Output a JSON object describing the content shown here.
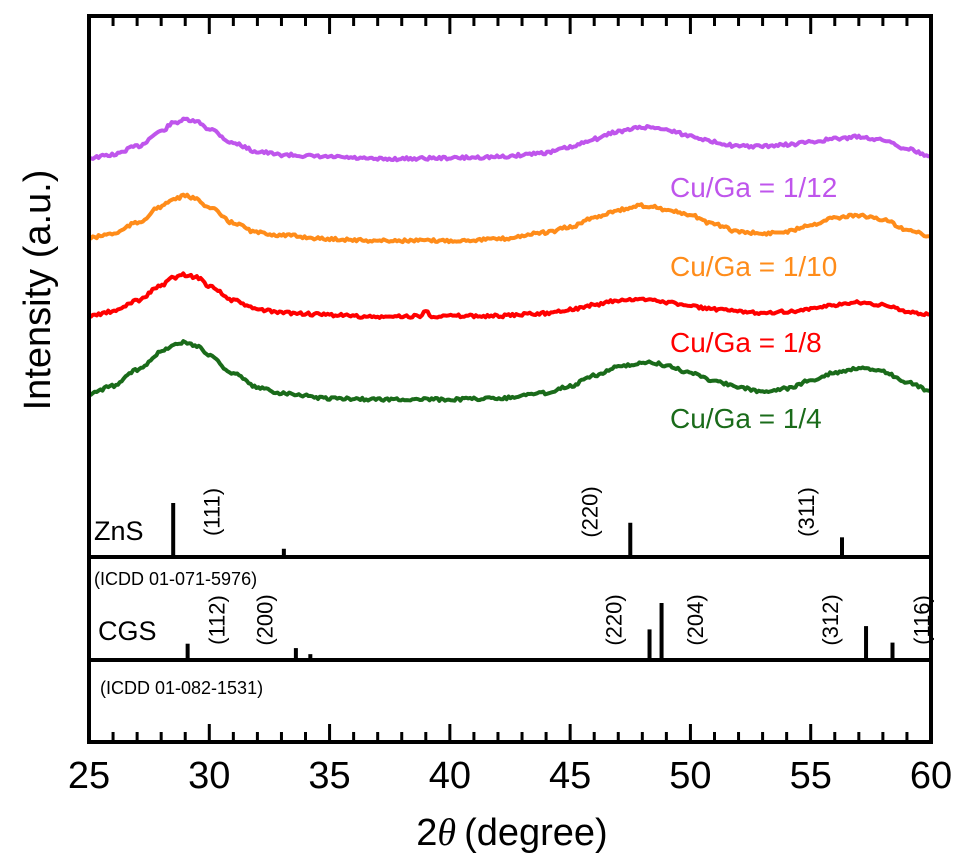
{
  "chart_data": {
    "type": "line",
    "xlabel_prefix": "2",
    "xlabel_symbol": "θ",
    "xlabel_unit": "(degree)",
    "ylabel": "Intensity (a.u.)",
    "xlim": [
      25,
      60
    ],
    "xticks": [
      "25",
      "30",
      "35",
      "40",
      "45",
      "50",
      "55",
      "60"
    ],
    "grid": false,
    "series": [
      {
        "name": "Cu/Ga = 1/12",
        "color": "#bf55ec",
        "baseline": 0.82,
        "points": [
          [
            25,
            0.0
          ],
          [
            26,
            0.06
          ],
          [
            27,
            0.22
          ],
          [
            28,
            0.5
          ],
          [
            28.5,
            0.66
          ],
          [
            29,
            0.72
          ],
          [
            29.5,
            0.68
          ],
          [
            30,
            0.55
          ],
          [
            31,
            0.28
          ],
          [
            32,
            0.12
          ],
          [
            33,
            0.06
          ],
          [
            35,
            0.02
          ],
          [
            37,
            -0.02
          ],
          [
            40,
            0.0
          ],
          [
            42,
            0.02
          ],
          [
            44,
            0.1
          ],
          [
            45,
            0.2
          ],
          [
            46,
            0.36
          ],
          [
            47,
            0.5
          ],
          [
            48,
            0.58
          ],
          [
            48.5,
            0.58
          ],
          [
            49,
            0.53
          ],
          [
            50,
            0.42
          ],
          [
            51,
            0.3
          ],
          [
            52,
            0.22
          ],
          [
            53,
            0.22
          ],
          [
            54,
            0.25
          ],
          [
            55,
            0.3
          ],
          [
            56,
            0.36
          ],
          [
            57,
            0.4
          ],
          [
            58,
            0.34
          ],
          [
            59,
            0.18
          ],
          [
            60,
            0.02
          ]
        ]
      },
      {
        "name": "Cu/Ga = 1/10",
        "color": "#ff8c1a",
        "baseline": 0.9,
        "points": [
          [
            25,
            0.0
          ],
          [
            26,
            0.08
          ],
          [
            27,
            0.28
          ],
          [
            28,
            0.58
          ],
          [
            28.5,
            0.72
          ],
          [
            29,
            0.78
          ],
          [
            29.5,
            0.72
          ],
          [
            30,
            0.56
          ],
          [
            31,
            0.28
          ],
          [
            32,
            0.1
          ],
          [
            33,
            0.05
          ],
          [
            35,
            -0.02
          ],
          [
            37,
            -0.05
          ],
          [
            40,
            -0.05
          ],
          [
            42,
            -0.02
          ],
          [
            44,
            0.1
          ],
          [
            45,
            0.2
          ],
          [
            46,
            0.38
          ],
          [
            47,
            0.52
          ],
          [
            48,
            0.6
          ],
          [
            48.5,
            0.58
          ],
          [
            49,
            0.52
          ],
          [
            50,
            0.42
          ],
          [
            51,
            0.25
          ],
          [
            52,
            0.12
          ],
          [
            53,
            0.08
          ],
          [
            54,
            0.12
          ],
          [
            55,
            0.25
          ],
          [
            56,
            0.38
          ],
          [
            57,
            0.42
          ],
          [
            58,
            0.34
          ],
          [
            59,
            0.16
          ],
          [
            60,
            0.02
          ]
        ]
      },
      {
        "name": "Cu/Ga = 1/8",
        "color": "#ff0000",
        "baseline": 1.0,
        "points": [
          [
            25,
            0.0
          ],
          [
            26,
            0.08
          ],
          [
            27,
            0.28
          ],
          [
            28,
            0.55
          ],
          [
            28.5,
            0.7
          ],
          [
            29,
            0.75
          ],
          [
            29.5,
            0.7
          ],
          [
            30,
            0.55
          ],
          [
            31,
            0.28
          ],
          [
            32,
            0.12
          ],
          [
            33,
            0.06
          ],
          [
            35,
            0.02
          ],
          [
            37,
            -0.02
          ],
          [
            38.8,
            0.0
          ],
          [
            39,
            0.1
          ],
          [
            39.2,
            0.0
          ],
          [
            40,
            0.0
          ],
          [
            42,
            0.0
          ],
          [
            44,
            0.05
          ],
          [
            45,
            0.12
          ],
          [
            46,
            0.2
          ],
          [
            47,
            0.28
          ],
          [
            48,
            0.3
          ],
          [
            48.5,
            0.3
          ],
          [
            49,
            0.25
          ],
          [
            50,
            0.18
          ],
          [
            51,
            0.12
          ],
          [
            52,
            0.08
          ],
          [
            53,
            0.06
          ],
          [
            54,
            0.08
          ],
          [
            55,
            0.12
          ],
          [
            56,
            0.2
          ],
          [
            57,
            0.25
          ],
          [
            58,
            0.2
          ],
          [
            59,
            0.08
          ],
          [
            60,
            0.02
          ]
        ]
      },
      {
        "name": "Cu/Ga = 1/4",
        "color": "#1a6b1a",
        "baseline": 0.88,
        "points": [
          [
            25,
            0.0
          ],
          [
            26,
            0.15
          ],
          [
            27,
            0.45
          ],
          [
            28,
            0.78
          ],
          [
            28.5,
            0.92
          ],
          [
            29,
            0.96
          ],
          [
            29.5,
            0.9
          ],
          [
            30,
            0.72
          ],
          [
            31,
            0.38
          ],
          [
            32,
            0.12
          ],
          [
            33,
            0.02
          ],
          [
            35,
            -0.08
          ],
          [
            37,
            -0.1
          ],
          [
            40,
            -0.1
          ],
          [
            42,
            -0.08
          ],
          [
            44,
            0.02
          ],
          [
            45,
            0.15
          ],
          [
            46,
            0.35
          ],
          [
            47,
            0.5
          ],
          [
            48,
            0.58
          ],
          [
            48.5,
            0.58
          ],
          [
            49,
            0.52
          ],
          [
            50,
            0.4
          ],
          [
            51,
            0.25
          ],
          [
            52,
            0.12
          ],
          [
            53,
            0.05
          ],
          [
            54,
            0.1
          ],
          [
            55,
            0.25
          ],
          [
            56,
            0.4
          ],
          [
            57,
            0.48
          ],
          [
            58,
            0.42
          ],
          [
            59,
            0.22
          ],
          [
            60,
            0.05
          ]
        ]
      }
    ],
    "references": [
      {
        "name": "ZnS",
        "card": "(ICDD 01-071-5976)",
        "peaks": [
          {
            "x": 28.5,
            "intensity": 1.0,
            "hkl": "(111)",
            "label_x": 30.1
          },
          {
            "x": 33.1,
            "intensity": 0.12,
            "hkl": ""
          },
          {
            "x": 47.5,
            "intensity": 0.62,
            "hkl": "(220)",
            "label_x": 45.8
          },
          {
            "x": 56.3,
            "intensity": 0.34,
            "hkl": "(311)",
            "label_x": 54.8
          }
        ]
      },
      {
        "name": "CGS",
        "card": "(ICDD 01-082-1531)",
        "peaks": [
          {
            "x": 29.1,
            "intensity": 0.26,
            "hkl": "(112)",
            "label_x": 30.3
          },
          {
            "x": 33.6,
            "intensity": 0.18,
            "hkl": "(200)",
            "label_x": 32.3
          },
          {
            "x": 34.2,
            "intensity": 0.07,
            "hkl": ""
          },
          {
            "x": 48.3,
            "intensity": 0.52,
            "hkl": "(220)",
            "label_x": 46.8
          },
          {
            "x": 48.8,
            "intensity": 1.0,
            "hkl": "(204)",
            "label_x": 50.2
          },
          {
            "x": 57.3,
            "intensity": 0.58,
            "hkl": "(312)",
            "label_x": 55.8
          },
          {
            "x": 58.4,
            "intensity": 0.28,
            "hkl": "(116)",
            "label_x": 59.6
          }
        ]
      }
    ]
  }
}
